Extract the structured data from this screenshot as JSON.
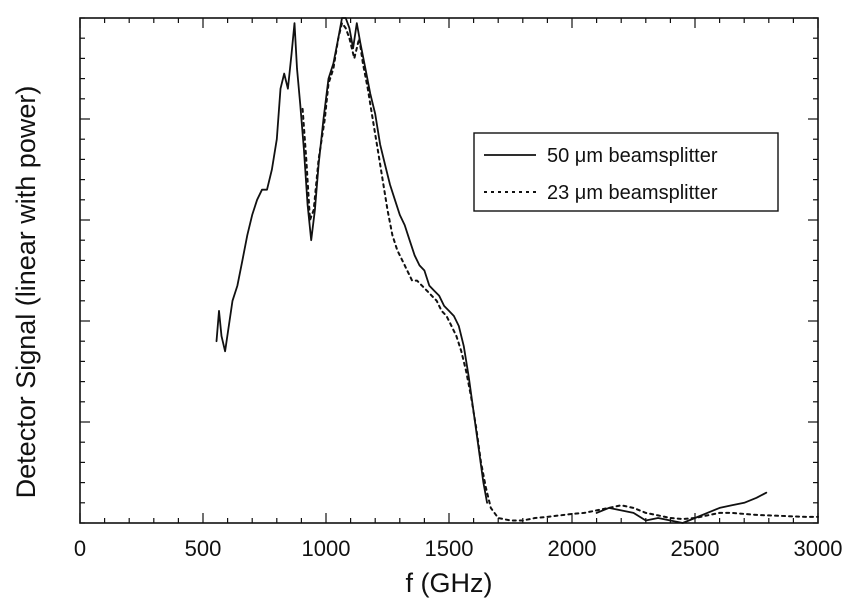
{
  "chart_data": {
    "type": "line",
    "title": "",
    "xlabel": "f (GHz)",
    "ylabel": "Detector Signal (linear with power)",
    "xlim": [
      0,
      3000
    ],
    "ylim": [
      0,
      1.0
    ],
    "xticks": [
      "0",
      "500",
      "1000",
      "1500",
      "2000",
      "2500",
      "3000"
    ],
    "y_tick_labels_shown": false,
    "grid": false,
    "legend_position": "top-right",
    "series": [
      {
        "name": "50 μm beamsplitter",
        "style": "solid",
        "color": "#111111",
        "points": [
          [
            555,
            0.36
          ],
          [
            565,
            0.42
          ],
          [
            575,
            0.37
          ],
          [
            590,
            0.34
          ],
          [
            605,
            0.39
          ],
          [
            620,
            0.44
          ],
          [
            640,
            0.47
          ],
          [
            660,
            0.52
          ],
          [
            680,
            0.57
          ],
          [
            700,
            0.61
          ],
          [
            720,
            0.64
          ],
          [
            740,
            0.66
          ],
          [
            760,
            0.66
          ],
          [
            780,
            0.7
          ],
          [
            800,
            0.76
          ],
          [
            815,
            0.86
          ],
          [
            830,
            0.89
          ],
          [
            845,
            0.86
          ],
          [
            860,
            0.93
          ],
          [
            872,
            0.99
          ],
          [
            882,
            0.9
          ],
          [
            895,
            0.83
          ],
          [
            910,
            0.74
          ],
          [
            925,
            0.63
          ],
          [
            940,
            0.56
          ],
          [
            955,
            0.62
          ],
          [
            970,
            0.71
          ],
          [
            990,
            0.8
          ],
          [
            1010,
            0.88
          ],
          [
            1030,
            0.91
          ],
          [
            1050,
            0.96
          ],
          [
            1065,
            1.0
          ],
          [
            1080,
            1.0
          ],
          [
            1095,
            0.98
          ],
          [
            1110,
            0.94
          ],
          [
            1125,
            0.99
          ],
          [
            1140,
            0.95
          ],
          [
            1160,
            0.9
          ],
          [
            1180,
            0.85
          ],
          [
            1200,
            0.81
          ],
          [
            1220,
            0.75
          ],
          [
            1240,
            0.71
          ],
          [
            1260,
            0.67
          ],
          [
            1280,
            0.64
          ],
          [
            1300,
            0.61
          ],
          [
            1320,
            0.59
          ],
          [
            1340,
            0.56
          ],
          [
            1360,
            0.53
          ],
          [
            1380,
            0.51
          ],
          [
            1400,
            0.5
          ],
          [
            1420,
            0.47
          ],
          [
            1440,
            0.46
          ],
          [
            1460,
            0.45
          ],
          [
            1480,
            0.43
          ],
          [
            1500,
            0.42
          ],
          [
            1520,
            0.41
          ],
          [
            1540,
            0.39
          ],
          [
            1560,
            0.35
          ],
          [
            1580,
            0.29
          ],
          [
            1600,
            0.22
          ],
          [
            1620,
            0.15
          ],
          [
            1640,
            0.08
          ],
          [
            1655,
            0.04
          ],
          [
            2100,
            0.02
          ],
          [
            2150,
            0.03
          ],
          [
            2200,
            0.025
          ],
          [
            2250,
            0.02
          ],
          [
            2300,
            0.005
          ],
          [
            2350,
            0.01
          ],
          [
            2400,
            0.005
          ],
          [
            2450,
            0.0
          ],
          [
            2500,
            0.01
          ],
          [
            2550,
            0.02
          ],
          [
            2600,
            0.03
          ],
          [
            2650,
            0.035
          ],
          [
            2700,
            0.04
          ],
          [
            2750,
            0.05
          ],
          [
            2790,
            0.06
          ]
        ]
      },
      {
        "name": "23 μm beamsplitter",
        "style": "dotted",
        "color": "#111111",
        "points": [
          [
            905,
            0.82
          ],
          [
            920,
            0.72
          ],
          [
            935,
            0.6
          ],
          [
            950,
            0.62
          ],
          [
            970,
            0.72
          ],
          [
            995,
            0.8
          ],
          [
            1010,
            0.87
          ],
          [
            1030,
            0.9
          ],
          [
            1050,
            0.96
          ],
          [
            1065,
            0.99
          ],
          [
            1080,
            0.98
          ],
          [
            1095,
            0.96
          ],
          [
            1115,
            0.92
          ],
          [
            1135,
            0.96
          ],
          [
            1150,
            0.91
          ],
          [
            1170,
            0.86
          ],
          [
            1190,
            0.8
          ],
          [
            1210,
            0.74
          ],
          [
            1230,
            0.68
          ],
          [
            1250,
            0.62
          ],
          [
            1270,
            0.57
          ],
          [
            1290,
            0.54
          ],
          [
            1310,
            0.52
          ],
          [
            1330,
            0.5
          ],
          [
            1350,
            0.48
          ],
          [
            1370,
            0.48
          ],
          [
            1390,
            0.47
          ],
          [
            1410,
            0.46
          ],
          [
            1430,
            0.45
          ],
          [
            1450,
            0.44
          ],
          [
            1470,
            0.42
          ],
          [
            1490,
            0.41
          ],
          [
            1510,
            0.39
          ],
          [
            1530,
            0.37
          ],
          [
            1550,
            0.34
          ],
          [
            1570,
            0.3
          ],
          [
            1590,
            0.25
          ],
          [
            1610,
            0.19
          ],
          [
            1630,
            0.12
          ],
          [
            1650,
            0.07
          ],
          [
            1670,
            0.03
          ],
          [
            1700,
            0.01
          ],
          [
            1750,
            0.005
          ],
          [
            1800,
            0.005
          ],
          [
            1850,
            0.01
          ],
          [
            1900,
            0.012
          ],
          [
            1950,
            0.015
          ],
          [
            2000,
            0.018
          ],
          [
            2050,
            0.02
          ],
          [
            2100,
            0.025
          ],
          [
            2150,
            0.03
          ],
          [
            2200,
            0.035
          ],
          [
            2250,
            0.03
          ],
          [
            2300,
            0.02
          ],
          [
            2350,
            0.015
          ],
          [
            2400,
            0.01
          ],
          [
            2450,
            0.008
          ],
          [
            2500,
            0.01
          ],
          [
            2550,
            0.015
          ],
          [
            2600,
            0.02
          ],
          [
            2650,
            0.02
          ],
          [
            2700,
            0.018
          ],
          [
            2750,
            0.016
          ],
          [
            2800,
            0.015
          ],
          [
            2850,
            0.014
          ],
          [
            2900,
            0.013
          ],
          [
            2950,
            0.012
          ],
          [
            3000,
            0.012
          ]
        ]
      }
    ]
  }
}
